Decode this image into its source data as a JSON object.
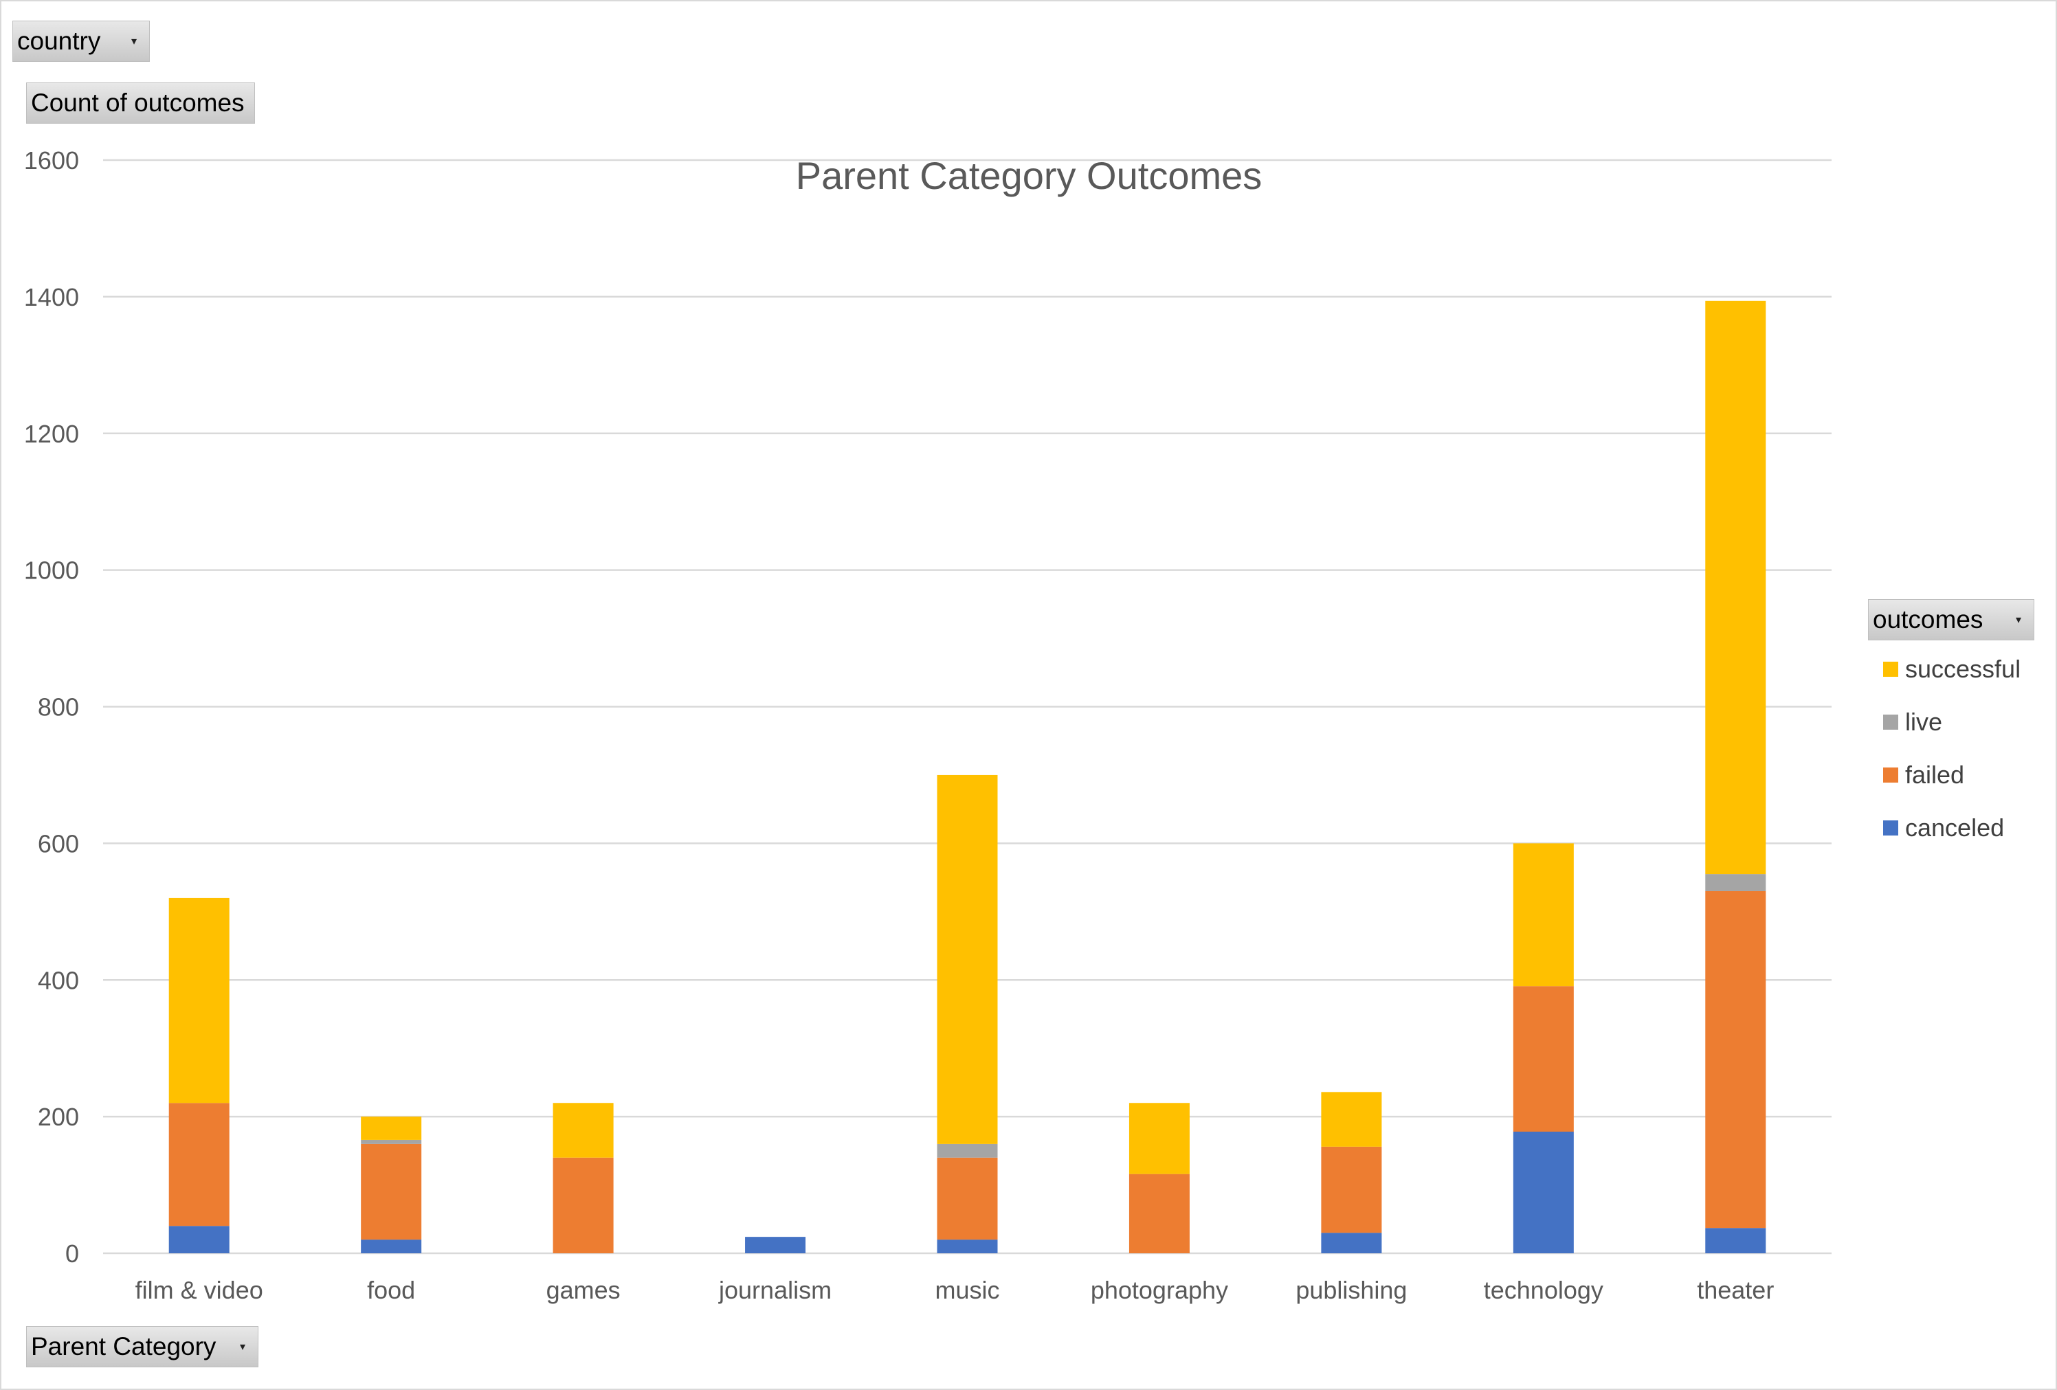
{
  "filters": {
    "country_label": "country",
    "values_label": "Count of outcomes",
    "axis_label": "Parent Category",
    "legend_label": "outcomes"
  },
  "chart_data": {
    "type": "bar",
    "stacked": true,
    "title": "Parent Category Outcomes",
    "xlabel": "Parent Category",
    "ylabel": "Count of outcomes",
    "ylim": [
      0,
      1600
    ],
    "yticks": [
      0,
      200,
      400,
      600,
      800,
      1000,
      1200,
      1400,
      1600
    ],
    "grid": true,
    "legend_position": "right",
    "categories": [
      "film & video",
      "food",
      "games",
      "journalism",
      "music",
      "photography",
      "publishing",
      "technology",
      "theater"
    ],
    "series": [
      {
        "name": "canceled",
        "color": "#4472c4",
        "values": [
          40,
          20,
          0,
          24,
          20,
          0,
          30,
          178,
          37
        ]
      },
      {
        "name": "failed",
        "color": "#ed7d31",
        "values": [
          180,
          140,
          140,
          0,
          120,
          116,
          126,
          213,
          493
        ]
      },
      {
        "name": "live",
        "color": "#a5a5a5",
        "values": [
          0,
          6,
          0,
          0,
          20,
          0,
          0,
          0,
          25
        ]
      },
      {
        "name": "successful",
        "color": "#ffc000",
        "values": [
          300,
          34,
          80,
          0,
          540,
          104,
          80,
          209,
          839
        ]
      }
    ],
    "legend_order": [
      "successful",
      "live",
      "failed",
      "canceled"
    ]
  }
}
